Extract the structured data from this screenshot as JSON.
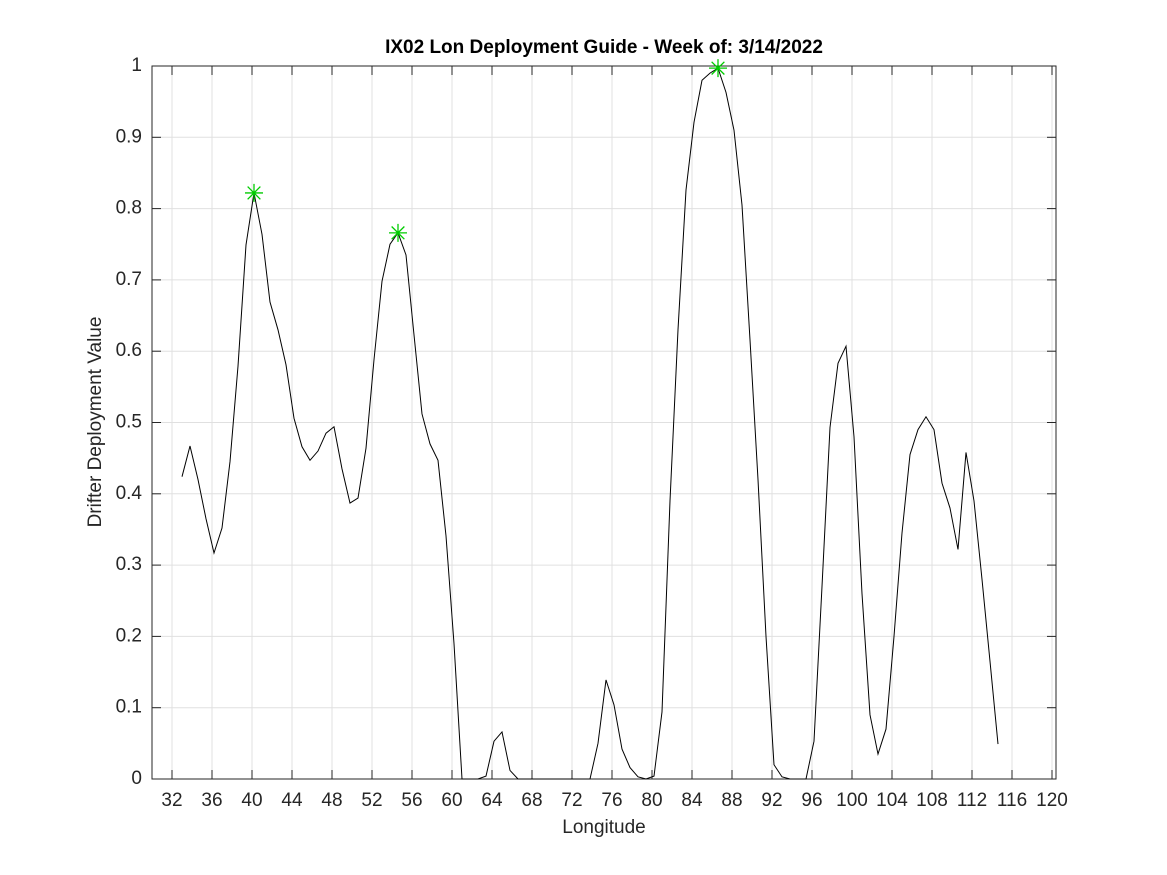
{
  "chart_data": {
    "type": "line",
    "title": "IX02 Lon Deployment Guide - Week of: 3/14/2022",
    "x_label": "Longitude",
    "y_label": "Drifter Deployment Value",
    "xlim": [
      30,
      120.4
    ],
    "ylim": [
      0,
      1
    ],
    "xticks": [
      32,
      36,
      40,
      44,
      48,
      52,
      56,
      60,
      64,
      68,
      72,
      76,
      80,
      84,
      88,
      92,
      96,
      100,
      104,
      108,
      112,
      116,
      120
    ],
    "yticks": [
      0,
      0.1,
      0.2,
      0.3,
      0.4,
      0.5,
      0.6,
      0.7,
      0.8,
      0.9,
      1
    ],
    "grid": true,
    "series": [
      {
        "color": "#000000",
        "x": [
          33.0,
          33.8,
          34.6,
          35.4,
          36.2,
          37.0,
          37.8,
          38.6,
          39.4,
          40.2,
          41.0,
          41.8,
          42.6,
          43.4,
          44.2,
          45.0,
          45.8,
          46.6,
          47.4,
          48.2,
          49.0,
          49.8,
          50.6,
          51.4,
          52.2,
          53.0,
          53.8,
          54.6,
          55.4,
          56.2,
          57.0,
          57.8,
          58.6,
          59.4,
          60.2,
          61.0,
          61.8,
          62.6,
          63.4,
          64.2,
          65.0,
          65.8,
          66.6,
          67.4,
          68.2,
          69.0,
          69.8,
          70.6,
          71.4,
          72.2,
          73.0,
          73.8,
          74.6,
          75.4,
          76.2,
          77.0,
          77.8,
          78.6,
          79.4,
          80.2,
          81.0,
          81.8,
          82.6,
          83.4,
          84.2,
          85.0,
          85.8,
          86.6,
          87.4,
          88.2,
          89.0,
          89.8,
          90.6,
          91.4,
          92.2,
          93.0,
          93.8,
          94.6,
          95.4,
          96.2,
          97.0,
          97.8,
          98.6,
          99.4,
          100.2,
          101.0,
          101.8,
          102.6,
          103.4,
          104.2,
          105.0,
          105.8,
          106.6,
          107.4,
          108.2,
          109.0,
          109.8,
          110.6,
          111.4,
          112.2,
          113.0,
          113.8,
          114.6
        ],
        "values": [
          0.424,
          0.467,
          0.42,
          0.365,
          0.317,
          0.352,
          0.445,
          0.579,
          0.749,
          0.822,
          0.764,
          0.669,
          0.63,
          0.581,
          0.506,
          0.466,
          0.447,
          0.46,
          0.485,
          0.494,
          0.435,
          0.387,
          0.394,
          0.464,
          0.588,
          0.698,
          0.75,
          0.766,
          0.735,
          0.623,
          0.512,
          0.47,
          0.447,
          0.341,
          0.19,
          0,
          0,
          0,
          0.004,
          0.053,
          0.066,
          0.012,
          0,
          0,
          0,
          0,
          0,
          0,
          0,
          0,
          0,
          0,
          0.05,
          0.139,
          0.104,
          0.042,
          0.016,
          0.003,
          0,
          0.004,
          0.094,
          0.39,
          0.63,
          0.826,
          0.921,
          0.98,
          0.99,
          0.997,
          0.963,
          0.91,
          0.805,
          0.616,
          0.42,
          0.2,
          0.02,
          0.003,
          0,
          0,
          0,
          0.053,
          0.27,
          0.493,
          0.583,
          0.607,
          0.48,
          0.26,
          0.09,
          0.035,
          0.07,
          0.2,
          0.345,
          0.455,
          0.49,
          0.508,
          0.49,
          0.415,
          0.38,
          0.322,
          0.458,
          0.39,
          0.28,
          0.165,
          0.049
        ]
      },
      {
        "color": "#00cc00",
        "marker": "star",
        "x": [
          40.2,
          54.6,
          86.6
        ],
        "values": [
          0.822,
          0.766,
          0.997
        ]
      }
    ]
  }
}
